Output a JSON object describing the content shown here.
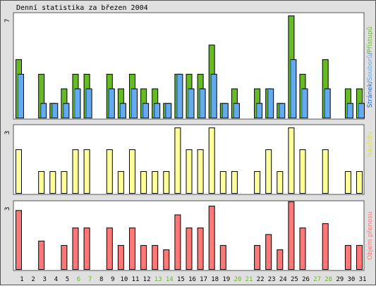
{
  "title": "Denní statistika za březen 2004",
  "colors": {
    "hits": "#66bb22",
    "files": "#66aaee",
    "pages": "#2266cc",
    "visits": "#ffff99",
    "volume": "#ff7777",
    "weekend": "#66bb22",
    "label_green": "#66bb22",
    "label_blue": "#66aaee",
    "label_darkblue": "#2266cc",
    "label_yellow": "#dddd55",
    "label_red": "#ff7777"
  },
  "chart_data": [
    {
      "type": "bar",
      "panel": "hits",
      "ymax_label": "7",
      "ymax": 7,
      "categories": [
        "1",
        "2",
        "3",
        "4",
        "5",
        "6",
        "7",
        "8",
        "9",
        "10",
        "11",
        "12",
        "13",
        "14",
        "15",
        "16",
        "17",
        "18",
        "19",
        "20",
        "21",
        "22",
        "23",
        "24",
        "25",
        "26",
        "27",
        "28",
        "29",
        "30",
        "31"
      ],
      "weekend_days": [
        "6",
        "7",
        "13",
        "14",
        "20",
        "21",
        "27",
        "28"
      ],
      "legend": {
        "hits": "Přístupů",
        "files": "Souborů",
        "pages": "Stránek",
        "sep": "/"
      },
      "series": [
        {
          "name": "Přístupů",
          "values": [
            4,
            0,
            3,
            1,
            2,
            3,
            3,
            0,
            3,
            2,
            3,
            2,
            2,
            1,
            3,
            3,
            3,
            5,
            1,
            2,
            0,
            2,
            2,
            1,
            7,
            3,
            0,
            4,
            0,
            2,
            2
          ]
        },
        {
          "name": "Souborů",
          "values": [
            3,
            0,
            1,
            1,
            1,
            2,
            2,
            0,
            2,
            1,
            2,
            1,
            1,
            1,
            3,
            2,
            2,
            3,
            1,
            1,
            0,
            1,
            2,
            1,
            4,
            2,
            0,
            2,
            0,
            1,
            1
          ]
        },
        {
          "name": "Stránek",
          "values": [
            3,
            0,
            1,
            1,
            1,
            2,
            2,
            0,
            2,
            1,
            2,
            1,
            1,
            1,
            3,
            2,
            2,
            3,
            1,
            1,
            0,
            1,
            2,
            1,
            4,
            2,
            0,
            2,
            0,
            1,
            1
          ]
        }
      ]
    },
    {
      "type": "bar",
      "panel": "visits",
      "ymax_label": "3",
      "ymax": 3,
      "legend": "Návštěv",
      "series": [
        {
          "name": "Návštěv",
          "values": [
            2,
            0,
            1,
            1,
            1,
            2,
            2,
            0,
            2,
            1,
            2,
            1,
            1,
            1,
            3,
            2,
            2,
            3,
            1,
            1,
            0,
            1,
            2,
            1,
            3,
            2,
            0,
            2,
            0,
            1,
            1
          ]
        }
      ]
    },
    {
      "type": "bar",
      "panel": "volume",
      "ymax_label": "3",
      "ymax": 3,
      "legend": "Objem přenosu",
      "series": [
        {
          "name": "Objem přenosu",
          "values": [
            2.7,
            0,
            1.3,
            0,
            1.1,
            1.9,
            1.9,
            0,
            1.9,
            1.1,
            1.9,
            1.1,
            1.1,
            0.9,
            2.5,
            1.9,
            1.9,
            2.9,
            1.1,
            0,
            0,
            1.1,
            1.6,
            0.9,
            3.1,
            1.9,
            0,
            2.1,
            0,
            1.1,
            1.1
          ]
        }
      ]
    }
  ]
}
